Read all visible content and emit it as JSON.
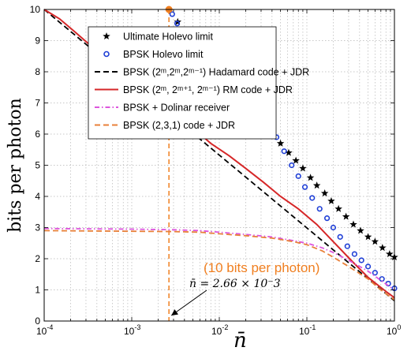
{
  "chart_data": {
    "type": "line",
    "xscale": "log",
    "xlim": [
      0.0001,
      1
    ],
    "ylim": [
      0,
      10
    ],
    "grid": true,
    "legend_position": "top-right",
    "xlabel": "n̄",
    "ylabel": "bits per photon",
    "x_ticks": [
      {
        "value": 0.0001,
        "base": "10",
        "exp": "-4"
      },
      {
        "value": 0.001,
        "base": "10",
        "exp": "-3"
      },
      {
        "value": 0.01,
        "base": "10",
        "exp": "-2"
      },
      {
        "value": 0.1,
        "base": "10",
        "exp": "-1"
      },
      {
        "value": 1,
        "base": "10",
        "exp": "0"
      }
    ],
    "y_ticks": [
      "0",
      "1",
      "2",
      "3",
      "4",
      "5",
      "6",
      "7",
      "8",
      "9",
      "10"
    ],
    "series": [
      {
        "name": "Ultimate Holevo limit",
        "color": "#000000",
        "style": "star-markers",
        "x": [
          0.00335,
          0.05,
          0.062,
          0.075,
          0.09,
          0.11,
          0.13,
          0.16,
          0.19,
          0.23,
          0.28,
          0.34,
          0.41,
          0.5,
          0.6,
          0.73,
          0.88,
          1.0
        ],
        "y": [
          9.6,
          5.7,
          5.4,
          5.15,
          4.9,
          4.6,
          4.35,
          4.1,
          3.85,
          3.6,
          3.35,
          3.1,
          2.9,
          2.7,
          2.55,
          2.35,
          2.15,
          2.05
        ]
      },
      {
        "name": "BPSK Holevo limit",
        "color": "#1f3fd6",
        "style": "circle-markers",
        "x": [
          0.0029,
          0.0033,
          0.045,
          0.055,
          0.067,
          0.08,
          0.095,
          0.115,
          0.14,
          0.17,
          0.2,
          0.24,
          0.29,
          0.35,
          0.42,
          0.5,
          0.6,
          0.72,
          0.85,
          1.0
        ],
        "y": [
          9.85,
          9.55,
          5.9,
          5.45,
          5.0,
          4.65,
          4.3,
          3.95,
          3.6,
          3.3,
          3.0,
          2.7,
          2.4,
          2.15,
          1.95,
          1.75,
          1.55,
          1.35,
          1.2,
          1.05
        ]
      },
      {
        "name": "BPSK (2ᵐ,2ᵐ,2ᵐ⁻¹) Hadamard code + JDR",
        "color": "#000000",
        "style": "dashed",
        "x": [
          0.0001,
          1
        ],
        "y": [
          10,
          0.65
        ]
      },
      {
        "name": "BPSK (2ᵐ, 2ᵐ⁺¹, 2ᵐ⁻¹) RM code + JDR",
        "color": "#d62728",
        "style": "solid",
        "x": [
          0.0001,
          0.00015,
          0.00022,
          0.00032,
          0.0005,
          0.0008,
          0.0013,
          0.002,
          0.0031,
          0.005,
          0.008,
          0.013,
          0.02,
          0.032,
          0.05,
          0.08,
          0.13,
          0.2,
          0.32,
          0.5,
          0.8,
          1.0
        ],
        "y": [
          10,
          9.7,
          9.3,
          8.9,
          8.5,
          8.0,
          7.55,
          7.1,
          6.6,
          6.2,
          5.7,
          5.3,
          4.9,
          4.45,
          4.0,
          3.6,
          3.1,
          2.55,
          1.95,
          1.4,
          0.95,
          0.75
        ]
      },
      {
        "name": "BPSK + Dolinar receiver",
        "color": "#dd55dd",
        "style": "dash-dot",
        "x": [
          0.0001,
          0.001,
          0.003,
          0.006,
          0.01,
          0.02,
          0.04,
          0.07,
          0.1,
          0.15,
          0.2,
          0.3,
          0.5,
          0.7,
          1.0
        ],
        "y": [
          2.97,
          2.95,
          2.93,
          2.9,
          2.85,
          2.78,
          2.7,
          2.58,
          2.5,
          2.35,
          2.2,
          1.95,
          1.6,
          1.3,
          1.0
        ]
      },
      {
        "name": "BPSK (2,3,1) code + JDR",
        "color": "#e8803a",
        "style": "dashed",
        "x": [
          0.0001,
          0.001,
          0.003,
          0.006,
          0.01,
          0.02,
          0.04,
          0.07,
          0.1,
          0.15,
          0.2,
          0.3,
          0.5,
          0.7,
          1.0
        ],
        "y": [
          2.9,
          2.88,
          2.87,
          2.85,
          2.8,
          2.74,
          2.66,
          2.55,
          2.45,
          2.25,
          2.05,
          1.75,
          1.35,
          1.0,
          0.68
        ]
      }
    ],
    "vertical_marker": {
      "x": 0.00266,
      "color": "#f07f20",
      "top_point_y": 10
    },
    "annotations": {
      "orange_text": "(10 bits per photon)",
      "black_text": "n̄ = 2.66 × 10⁻3"
    }
  }
}
